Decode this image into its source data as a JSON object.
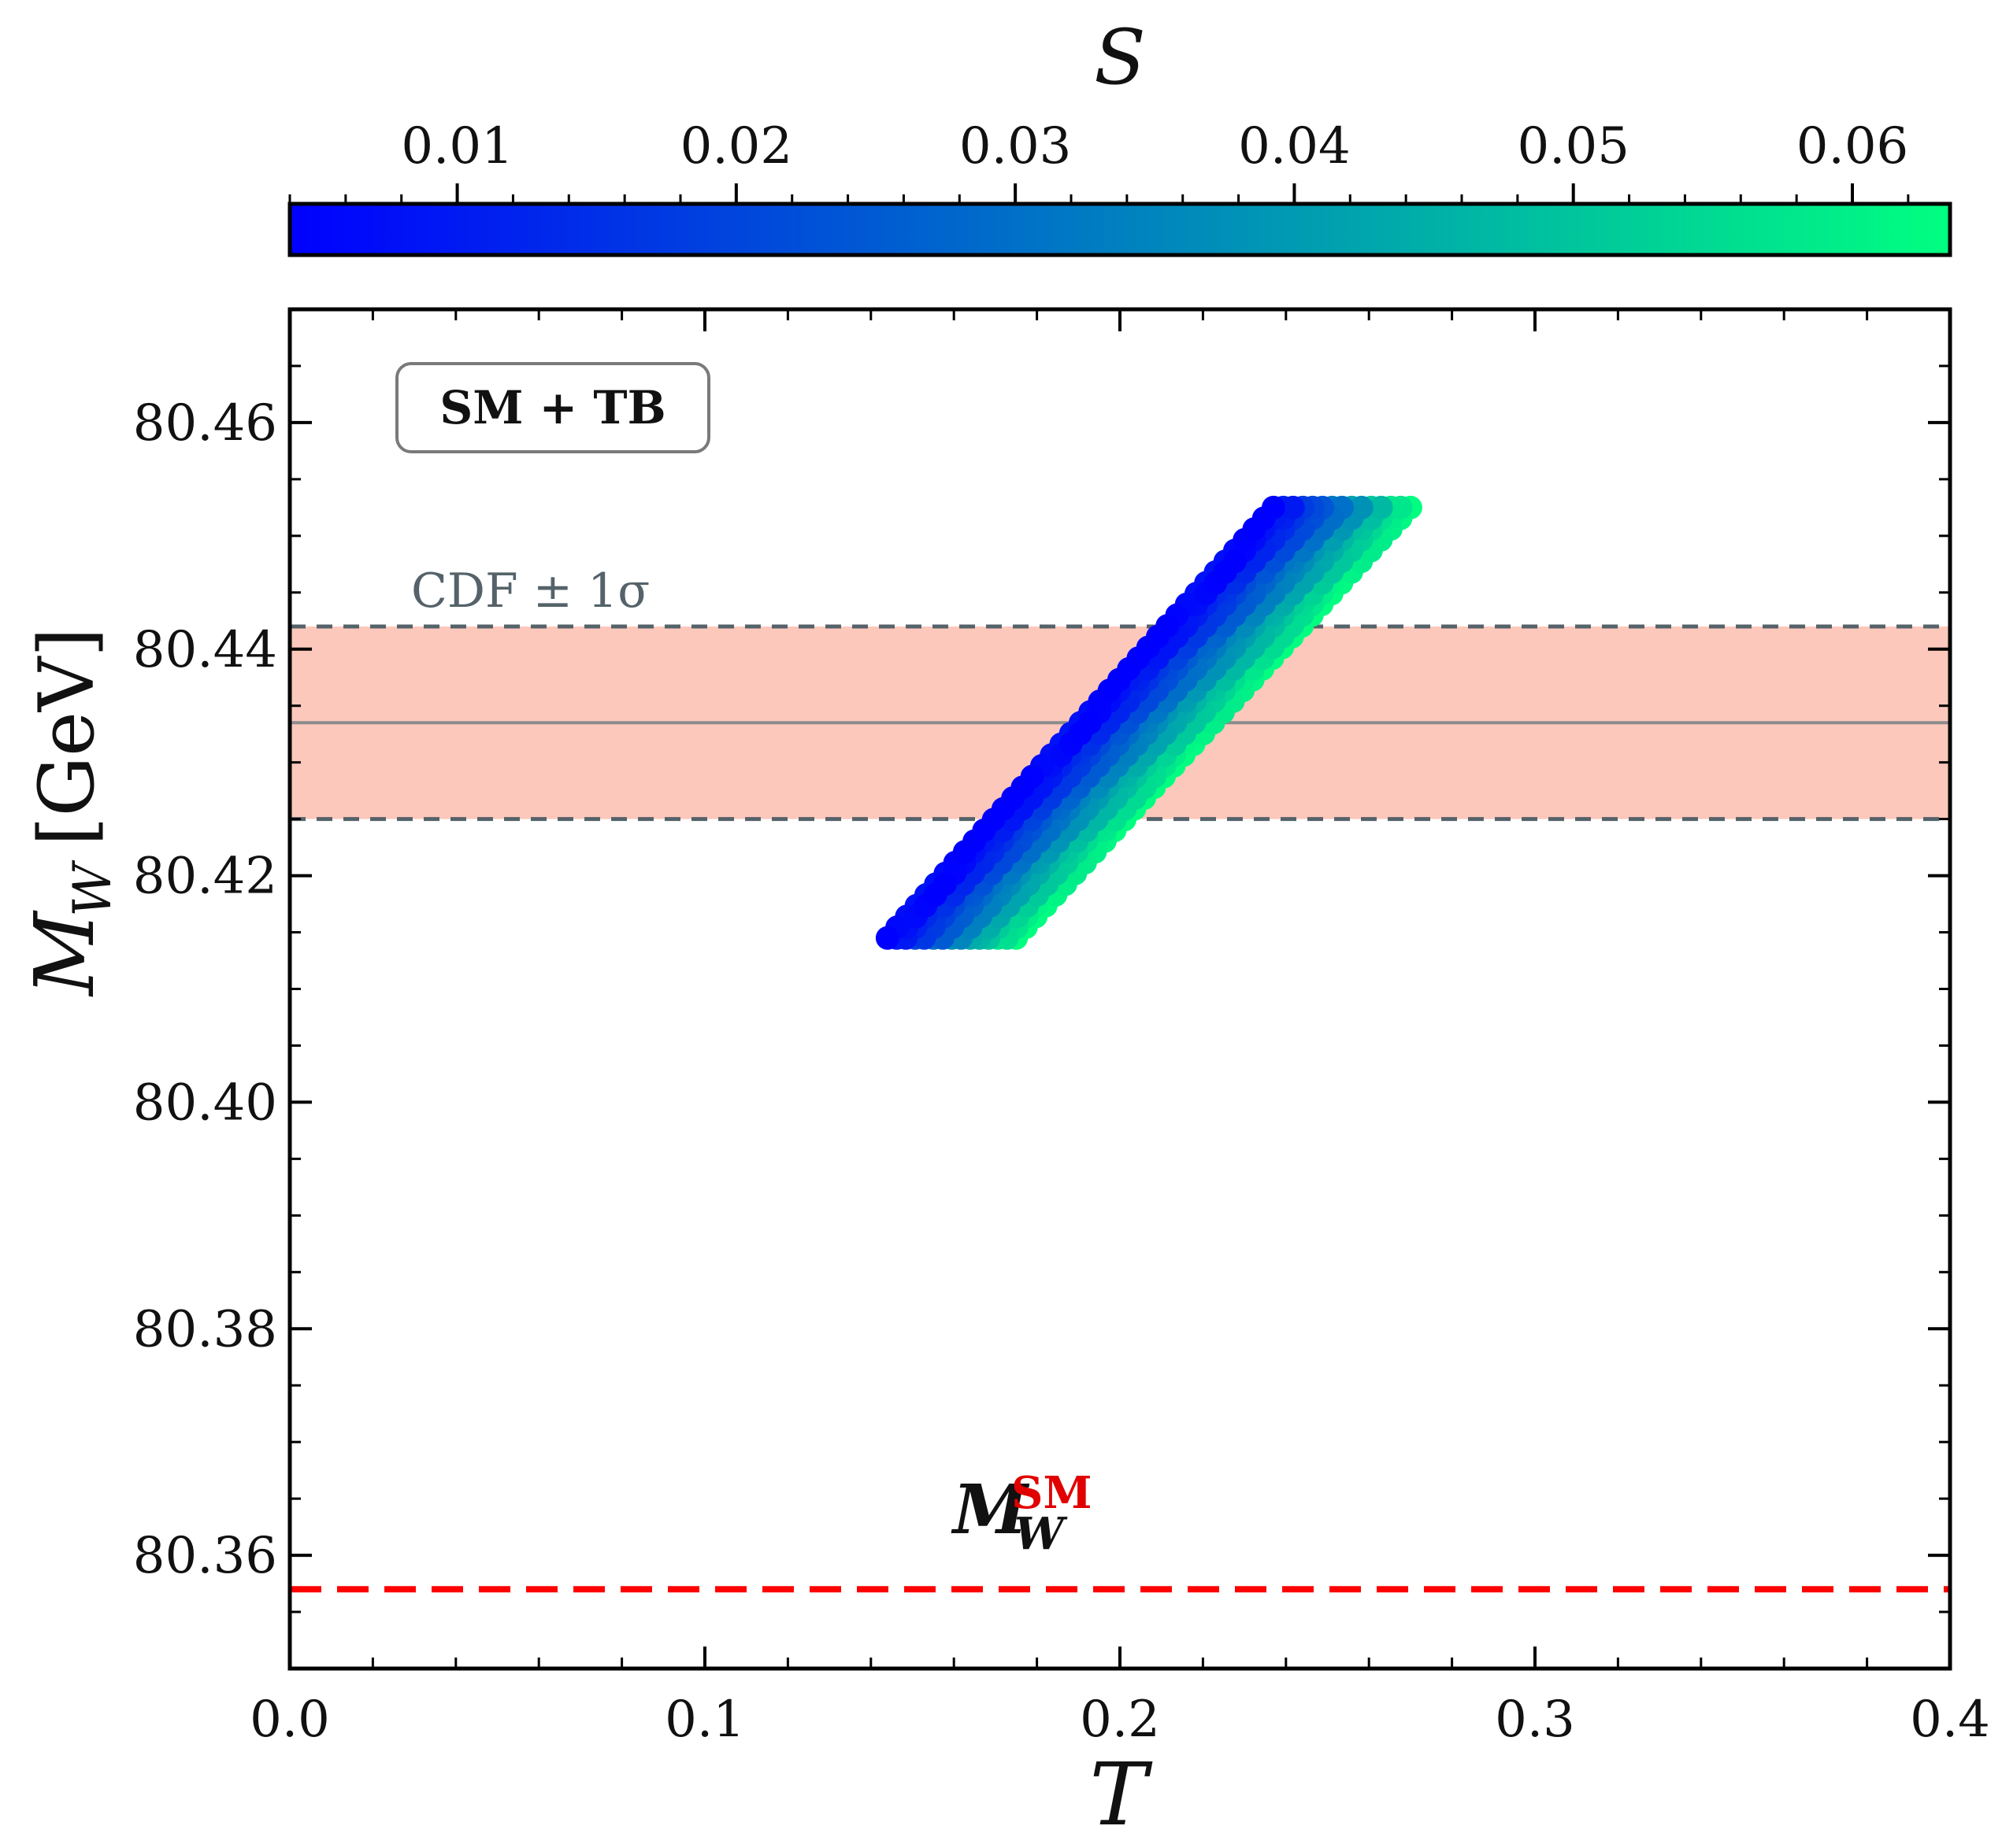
{
  "chart_data": {
    "type": "scatter",
    "title": "",
    "xlabel": "T",
    "ylabel_main": "M",
    "ylabel_sub": "W",
    "ylabel_unit": "[GeV]",
    "xlim": [
      0.0,
      0.4
    ],
    "ylim": [
      80.35,
      80.47
    ],
    "xticks": [
      "0.0",
      "0.1",
      "0.2",
      "0.3",
      "0.4"
    ],
    "xtick_values": [
      0.0,
      0.1,
      0.2,
      0.3,
      0.4
    ],
    "yticks": [
      "80.36",
      "80.38",
      "80.40",
      "80.42",
      "80.44",
      "80.46"
    ],
    "ytick_values": [
      80.36,
      80.38,
      80.4,
      80.42,
      80.44,
      80.46
    ],
    "colorbar": {
      "label": "S",
      "range": [
        0.004,
        0.0635
      ],
      "ticks": [
        "0.01",
        "0.02",
        "0.03",
        "0.04",
        "0.05",
        "0.06"
      ],
      "tick_values": [
        0.01,
        0.02,
        0.03,
        0.04,
        0.05,
        0.06
      ],
      "color_low": "#0000ff",
      "color_high": "#00ff80"
    },
    "scatter_region": {
      "description_points": "parallelogram band of points, color encodes S",
      "y_min": 80.4145,
      "y_max": 80.4525,
      "T_at_ymin_lowS": 0.144,
      "T_at_ymin_highS": 0.175,
      "T_at_ymax_lowS": 0.237,
      "T_at_ymax_highS": 0.27
    },
    "cdf_band": {
      "label": "CDF ± 1σ",
      "central": 80.4335,
      "lower": 80.425,
      "upper": 80.442,
      "fill_color": "#fcc8bb",
      "edge_color": "#55626a",
      "center_color": "#8c8c8c"
    },
    "sm_line": {
      "label_main": "M",
      "label_sub": "W",
      "label_sup": "SM",
      "value": 80.357,
      "color": "#ff0000"
    },
    "legend_box": "SM + TB"
  }
}
